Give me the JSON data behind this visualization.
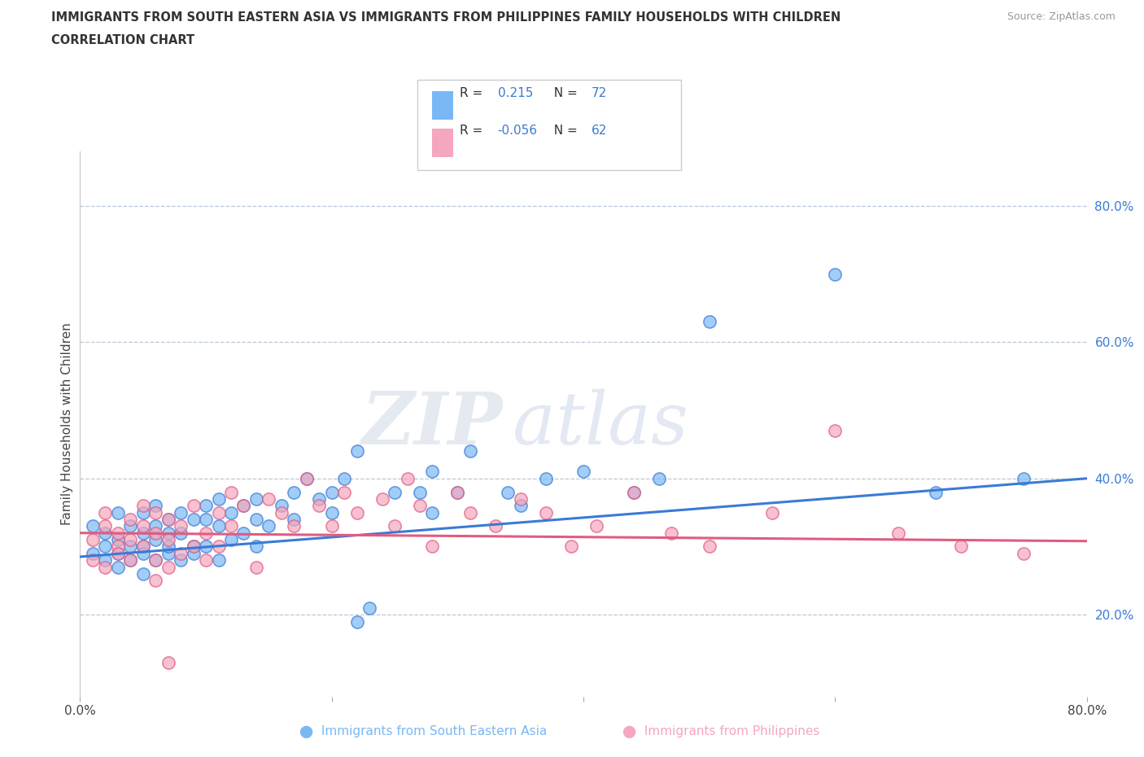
{
  "title_line1": "IMMIGRANTS FROM SOUTH EASTERN ASIA VS IMMIGRANTS FROM PHILIPPINES FAMILY HOUSEHOLDS WITH CHILDREN",
  "title_line2": "CORRELATION CHART",
  "source_text": "Source: ZipAtlas.com",
  "ylabel": "Family Households with Children",
  "xlim": [
    0.0,
    0.8
  ],
  "ylim": [
    0.08,
    0.88
  ],
  "ytick_labels_right": [
    "20.0%",
    "40.0%",
    "60.0%",
    "80.0%"
  ],
  "ytick_positions_right": [
    0.2,
    0.4,
    0.6,
    0.8
  ],
  "hlines": [
    0.2,
    0.4,
    0.6,
    0.8
  ],
  "color_sea": "#7ab8f5",
  "color_phil": "#f4a7be",
  "line_color_sea": "#3a7bd5",
  "line_color_phil": "#e05c80",
  "label_color": "#3a7bd5",
  "R_sea": 0.215,
  "N_sea": 72,
  "R_phil": -0.056,
  "N_phil": 62,
  "watermark": "ZIPatlas",
  "sea_scatter_x": [
    0.01,
    0.01,
    0.02,
    0.02,
    0.02,
    0.03,
    0.03,
    0.03,
    0.03,
    0.04,
    0.04,
    0.04,
    0.05,
    0.05,
    0.05,
    0.05,
    0.05,
    0.06,
    0.06,
    0.06,
    0.06,
    0.07,
    0.07,
    0.07,
    0.07,
    0.08,
    0.08,
    0.08,
    0.09,
    0.09,
    0.09,
    0.1,
    0.1,
    0.1,
    0.11,
    0.11,
    0.11,
    0.12,
    0.12,
    0.13,
    0.13,
    0.14,
    0.14,
    0.14,
    0.15,
    0.16,
    0.17,
    0.17,
    0.18,
    0.19,
    0.2,
    0.2,
    0.21,
    0.22,
    0.22,
    0.23,
    0.25,
    0.27,
    0.28,
    0.28,
    0.3,
    0.31,
    0.34,
    0.35,
    0.37,
    0.4,
    0.44,
    0.46,
    0.5,
    0.6,
    0.68,
    0.75
  ],
  "sea_scatter_y": [
    0.29,
    0.33,
    0.28,
    0.32,
    0.3,
    0.27,
    0.31,
    0.35,
    0.29,
    0.3,
    0.33,
    0.28,
    0.32,
    0.26,
    0.35,
    0.3,
    0.29,
    0.28,
    0.33,
    0.31,
    0.36,
    0.29,
    0.34,
    0.3,
    0.32,
    0.28,
    0.35,
    0.32,
    0.3,
    0.34,
    0.29,
    0.36,
    0.3,
    0.34,
    0.28,
    0.33,
    0.37,
    0.31,
    0.35,
    0.36,
    0.32,
    0.37,
    0.3,
    0.34,
    0.33,
    0.36,
    0.38,
    0.34,
    0.4,
    0.37,
    0.38,
    0.35,
    0.4,
    0.19,
    0.44,
    0.21,
    0.38,
    0.38,
    0.41,
    0.35,
    0.38,
    0.44,
    0.38,
    0.36,
    0.4,
    0.41,
    0.38,
    0.4,
    0.63,
    0.7,
    0.38,
    0.4
  ],
  "phil_scatter_x": [
    0.01,
    0.01,
    0.02,
    0.02,
    0.02,
    0.03,
    0.03,
    0.03,
    0.04,
    0.04,
    0.04,
    0.05,
    0.05,
    0.05,
    0.06,
    0.06,
    0.06,
    0.07,
    0.07,
    0.07,
    0.07,
    0.08,
    0.08,
    0.09,
    0.09,
    0.1,
    0.1,
    0.11,
    0.11,
    0.12,
    0.12,
    0.13,
    0.14,
    0.15,
    0.16,
    0.17,
    0.18,
    0.19,
    0.2,
    0.21,
    0.22,
    0.24,
    0.25,
    0.26,
    0.27,
    0.28,
    0.3,
    0.31,
    0.33,
    0.35,
    0.37,
    0.39,
    0.41,
    0.44,
    0.47,
    0.5,
    0.55,
    0.6,
    0.65,
    0.7,
    0.06,
    0.75
  ],
  "phil_scatter_y": [
    0.31,
    0.28,
    0.33,
    0.27,
    0.35,
    0.3,
    0.32,
    0.29,
    0.31,
    0.34,
    0.28,
    0.3,
    0.33,
    0.36,
    0.28,
    0.32,
    0.35,
    0.27,
    0.13,
    0.31,
    0.34,
    0.29,
    0.33,
    0.3,
    0.36,
    0.32,
    0.28,
    0.35,
    0.3,
    0.33,
    0.38,
    0.36,
    0.27,
    0.37,
    0.35,
    0.33,
    0.4,
    0.36,
    0.33,
    0.38,
    0.35,
    0.37,
    0.33,
    0.4,
    0.36,
    0.3,
    0.38,
    0.35,
    0.33,
    0.37,
    0.35,
    0.3,
    0.33,
    0.38,
    0.32,
    0.3,
    0.35,
    0.47,
    0.32,
    0.3,
    0.25,
    0.29
  ],
  "sea_line_x0": 0.0,
  "sea_line_y0": 0.285,
  "sea_line_x1": 0.8,
  "sea_line_y1": 0.4,
  "phil_line_x0": 0.0,
  "phil_line_y0": 0.32,
  "phil_line_x1": 0.8,
  "phil_line_y1": 0.308
}
